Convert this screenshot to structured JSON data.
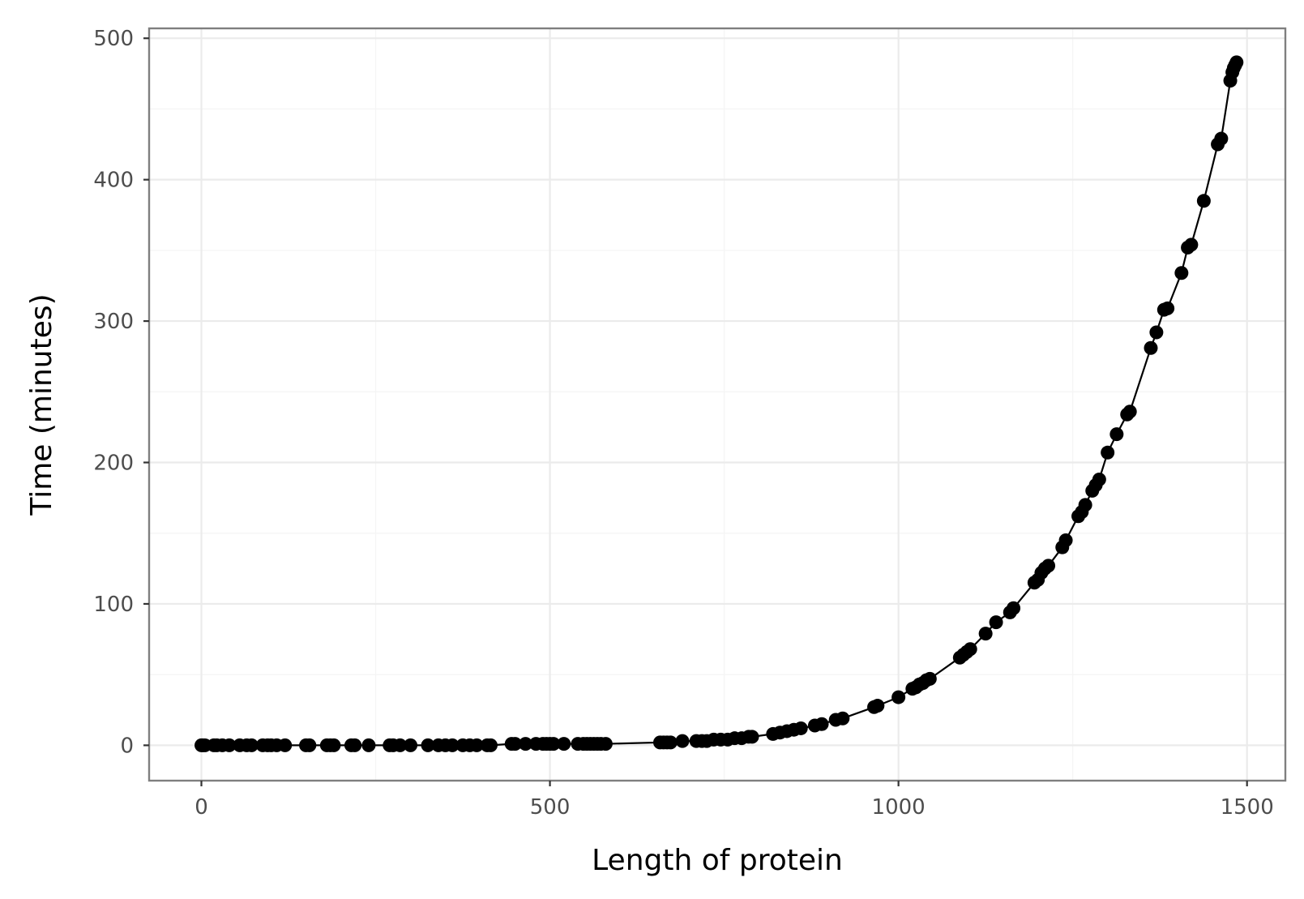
{
  "chart_data": {
    "type": "scatter",
    "title": "",
    "xlabel": "Length of protein",
    "ylabel": "Time (minutes)",
    "xlim": [
      -75,
      1555
    ],
    "ylim": [
      -25,
      507
    ],
    "x_ticks": [
      0,
      500,
      1000,
      1500
    ],
    "x_tick_labels": [
      "0",
      "500",
      "1000",
      "1500"
    ],
    "y_ticks": [
      0,
      100,
      200,
      300,
      400,
      500
    ],
    "y_tick_labels": [
      "0",
      "100",
      "200",
      "300",
      "400",
      "500"
    ],
    "grid": true,
    "line": true,
    "legend": "none",
    "colors": {
      "points": "#000000",
      "line": "#000000",
      "grid_major": "#ebebeb",
      "grid_minor": "#f5f5f5",
      "panel_border": "#7f7f7f",
      "tick_label": "#4d4d4d",
      "axis_title": "#000000"
    },
    "series": [
      {
        "x": [
          0,
          2,
          5,
          18,
          22,
          30,
          40,
          55,
          65,
          72,
          88,
          95,
          100,
          108,
          120,
          150,
          155,
          180,
          185,
          190,
          215,
          220,
          240,
          270,
          275,
          285,
          300,
          325,
          340,
          350,
          360,
          375,
          385,
          395,
          410,
          415,
          445,
          450,
          465,
          480,
          490,
          495,
          500,
          505,
          520,
          540,
          548,
          553,
          558,
          563,
          568,
          573,
          580,
          658,
          663,
          668,
          673,
          690,
          710,
          718,
          725,
          735,
          745,
          755,
          765,
          775,
          785,
          790,
          820,
          830,
          840,
          850,
          860,
          880,
          890,
          910,
          920,
          965,
          970,
          1000,
          1020,
          1025,
          1030,
          1035,
          1040,
          1045,
          1088,
          1093,
          1098,
          1103,
          1125,
          1140,
          1160,
          1165,
          1195,
          1200,
          1205,
          1210,
          1215,
          1235,
          1240,
          1258,
          1263,
          1268,
          1278,
          1283,
          1288,
          1300,
          1313,
          1328,
          1332,
          1362,
          1370,
          1381,
          1386,
          1406,
          1415,
          1420,
          1438,
          1458,
          1463,
          1476,
          1479,
          1481,
          1483,
          1485
        ],
        "y": [
          0,
          0,
          0,
          0,
          0,
          0,
          0,
          0,
          0,
          0,
          0,
          0,
          0,
          0,
          0,
          0,
          0,
          0,
          0,
          0,
          0,
          0,
          0,
          0,
          0,
          0,
          0,
          0,
          0,
          0,
          0,
          0,
          0,
          0,
          0,
          0,
          1,
          1,
          1,
          1,
          1,
          1,
          1,
          1,
          1,
          1,
          1,
          1,
          1,
          1,
          1,
          1,
          1,
          2,
          2,
          2,
          2,
          3,
          3,
          3,
          3,
          4,
          4,
          4,
          5,
          5,
          6,
          6,
          8,
          9,
          10,
          11,
          12,
          14,
          15,
          18,
          19,
          27,
          28,
          34,
          40,
          41,
          43,
          44,
          46,
          47,
          62,
          64,
          66,
          68,
          79,
          87,
          94,
          97,
          115,
          117,
          122,
          125,
          127,
          140,
          145,
          162,
          165,
          170,
          180,
          184,
          188,
          207,
          220,
          234,
          236,
          281,
          292,
          308,
          309,
          334,
          352,
          354,
          385,
          425,
          429,
          470,
          476,
          479,
          481,
          483
        ]
      }
    ]
  }
}
